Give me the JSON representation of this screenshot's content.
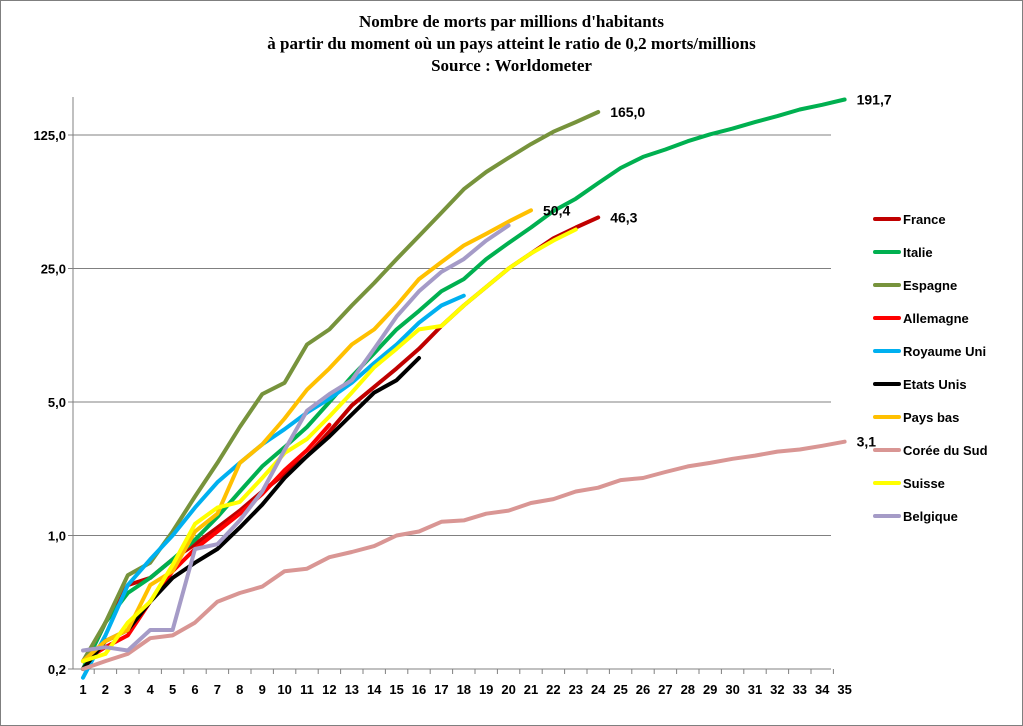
{
  "chart_data": {
    "type": "line",
    "title_lines": [
      "Nombre de morts par millions d'habitants",
      "à partir du moment où un pays atteint le ratio de 0,2 morts/millions",
      "Source : Worldometer"
    ],
    "y_scale": "log",
    "ylim": [
      0.2,
      200
    ],
    "y_ticks": [
      0.2,
      1,
      5,
      25,
      125
    ],
    "y_tick_labels": [
      "0,2",
      "1,0",
      "5,0",
      "25,0",
      "125,0"
    ],
    "x_ticks": [
      1,
      2,
      3,
      4,
      5,
      6,
      7,
      8,
      9,
      10,
      11,
      12,
      13,
      14,
      15,
      16,
      17,
      18,
      19,
      20,
      21,
      22,
      23,
      24,
      25,
      26,
      27,
      28,
      29,
      30,
      31,
      32,
      33,
      34,
      35
    ],
    "grid": "horizontal",
    "legend_position": "right",
    "series": [
      {
        "name": "France",
        "color": "#c00000",
        "end_label": "46,3",
        "values": [
          0.2,
          0.35,
          0.55,
          0.6,
          0.75,
          0.9,
          1.1,
          1.35,
          1.7,
          2.1,
          2.6,
          3.5,
          4.8,
          6.0,
          7.5,
          9.5,
          12.5,
          16.0,
          20.0,
          25.0,
          30.0,
          36.0,
          41.0,
          46.3
        ]
      },
      {
        "name": "Italie",
        "color": "#00b050",
        "end_label": "191,7",
        "values": [
          0.2,
          0.35,
          0.5,
          0.6,
          0.75,
          0.95,
          1.25,
          1.7,
          2.3,
          2.9,
          3.7,
          5.0,
          6.8,
          9.0,
          12.0,
          15.0,
          19.0,
          22.0,
          28.0,
          34.0,
          41.0,
          50.0,
          58.0,
          70.0,
          84.0,
          96.0,
          105.0,
          116.0,
          126.0,
          135.0,
          146.0,
          157.0,
          170.0,
          180.0,
          191.7
        ]
      },
      {
        "name": "Espagne",
        "color": "#77933c",
        "end_label": "165,0",
        "values": [
          0.22,
          0.35,
          0.62,
          0.72,
          1.05,
          1.6,
          2.4,
          3.7,
          5.5,
          6.3,
          10.0,
          12.0,
          16.0,
          21.0,
          28.0,
          37.0,
          49.0,
          65.0,
          80.0,
          95.0,
          112.0,
          130.0,
          146.0,
          165.0
        ]
      },
      {
        "name": "Allemagne",
        "color": "#ff0000",
        "end_label": "",
        "values": [
          0.22,
          0.26,
          0.3,
          0.45,
          0.65,
          0.85,
          1.05,
          1.3,
          1.65,
          2.2,
          2.8,
          3.8
        ]
      },
      {
        "name": "Royaume Uni",
        "color": "#00b0f0",
        "end_label": "",
        "values": [
          0.18,
          0.3,
          0.55,
          0.75,
          1.0,
          1.4,
          1.9,
          2.4,
          3.0,
          3.6,
          4.4,
          5.2,
          6.3,
          8.0,
          10.0,
          13.0,
          16.0,
          18.0
        ]
      },
      {
        "name": "Etats Unis",
        "color": "#000000",
        "end_label": "",
        "values": [
          0.2,
          0.28,
          0.32,
          0.45,
          0.6,
          0.72,
          0.85,
          1.1,
          1.45,
          2.0,
          2.6,
          3.3,
          4.3,
          5.6,
          6.5,
          8.5
        ]
      },
      {
        "name": "Pays bas",
        "color": "#ffc000",
        "end_label": "50,4",
        "values": [
          0.22,
          0.28,
          0.32,
          0.55,
          0.65,
          1.05,
          1.3,
          2.4,
          3.0,
          4.1,
          5.8,
          7.5,
          10.0,
          12.0,
          16.0,
          22.0,
          27.0,
          33.0,
          38.0,
          44.0,
          50.4
        ]
      },
      {
        "name": "Corée du Sud",
        "color": "#d99694",
        "end_label": "3,1",
        "values": [
          0.2,
          0.22,
          0.24,
          0.29,
          0.3,
          0.35,
          0.45,
          0.5,
          0.54,
          0.65,
          0.67,
          0.77,
          0.82,
          0.88,
          1.0,
          1.05,
          1.18,
          1.2,
          1.3,
          1.35,
          1.48,
          1.55,
          1.7,
          1.78,
          1.95,
          2.0,
          2.15,
          2.3,
          2.4,
          2.52,
          2.62,
          2.75,
          2.82,
          2.95,
          3.1
        ]
      },
      {
        "name": "Suisse",
        "color": "#ffff00",
        "end_label": "",
        "values": [
          0.22,
          0.24,
          0.35,
          0.45,
          0.7,
          1.15,
          1.4,
          1.5,
          2.0,
          2.7,
          3.2,
          4.2,
          5.6,
          7.6,
          9.5,
          12.0,
          12.5,
          16.0,
          20.0,
          25.0,
          30.0,
          35.0,
          40.0
        ]
      },
      {
        "name": "Belgique",
        "color": "#a59bc7",
        "end_label": "",
        "values": [
          0.25,
          0.26,
          0.25,
          0.32,
          0.32,
          0.85,
          0.9,
          1.2,
          1.7,
          2.8,
          4.5,
          5.5,
          6.5,
          9.5,
          14.0,
          19.0,
          24.0,
          28.0,
          35.0,
          42.0
        ]
      }
    ]
  }
}
